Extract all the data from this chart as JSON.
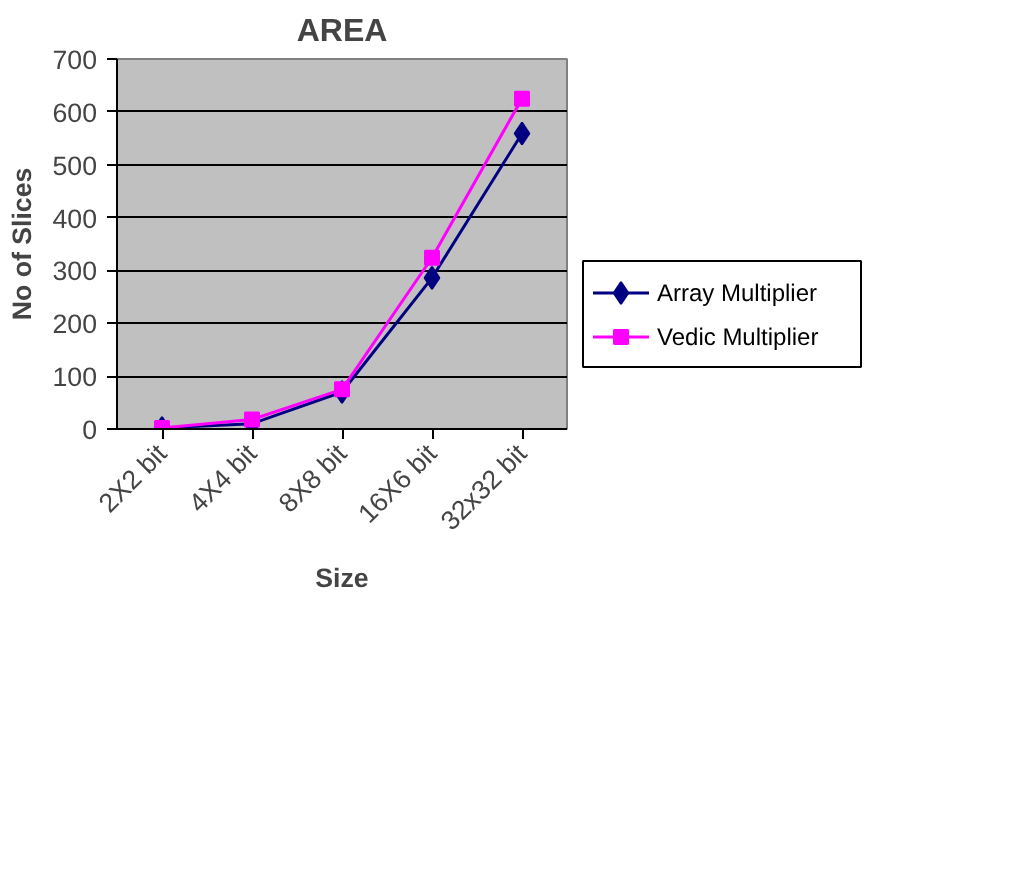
{
  "chart_data": {
    "type": "line",
    "title": "AREA",
    "xlabel": "Size",
    "ylabel": "No of Slices",
    "categories": [
      "2X2 bit",
      "4X4 bit",
      "8X8 bit",
      "16X6 bit",
      "32x32 bit"
    ],
    "series": [
      {
        "name": "Array Multiplier",
        "color": "#000080",
        "marker": "diamond",
        "values": [
          2,
          10,
          70,
          286,
          559
        ]
      },
      {
        "name": "Vedic Multiplier",
        "color": "#ff00ff",
        "marker": "square",
        "values": [
          2,
          18,
          75,
          324,
          625
        ]
      }
    ],
    "ylim": [
      0,
      700
    ],
    "yticks": [
      0,
      100,
      200,
      300,
      400,
      500,
      600,
      700
    ],
    "grid": "y",
    "legend": "right",
    "line_style": "solid"
  }
}
